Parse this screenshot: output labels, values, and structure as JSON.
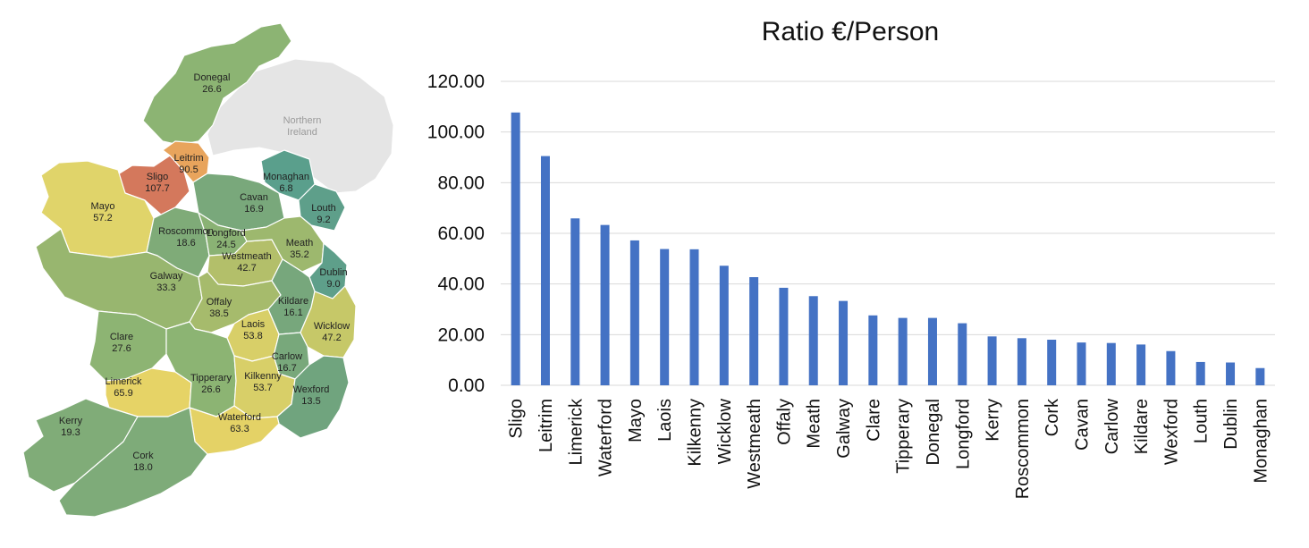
{
  "map": {
    "northern_ireland_label": [
      "Northern",
      "Ireland"
    ],
    "counties": [
      {
        "name": "Donegal",
        "value": "26.6",
        "color": "#8cb473"
      },
      {
        "name": "Leitrim",
        "value": "90.5",
        "color": "#e8a45c"
      },
      {
        "name": "Sligo",
        "value": "107.7",
        "color": "#d4785c"
      },
      {
        "name": "Monaghan",
        "value": "6.8",
        "color": "#5a9f8c"
      },
      {
        "name": "Mayo",
        "value": "57.2",
        "color": "#e0d46a"
      },
      {
        "name": "Cavan",
        "value": "16.9",
        "color": "#79a87b"
      },
      {
        "name": "Louth",
        "value": "9.2",
        "color": "#5e9f8a"
      },
      {
        "name": "Roscommon",
        "value": "18.6",
        "color": "#7fab78"
      },
      {
        "name": "Longford",
        "value": "24.5",
        "color": "#8ab274"
      },
      {
        "name": "Meath",
        "value": "35.2",
        "color": "#9db86e"
      },
      {
        "name": "Westmeath",
        "value": "42.7",
        "color": "#b3bf6a"
      },
      {
        "name": "Dublin",
        "value": "9.0",
        "color": "#5e9f8a"
      },
      {
        "name": "Galway",
        "value": "33.3",
        "color": "#98b66f"
      },
      {
        "name": "Offaly",
        "value": "38.5",
        "color": "#a6bb6c"
      },
      {
        "name": "Kildare",
        "value": "16.1",
        "color": "#77a77c"
      },
      {
        "name": "Laois",
        "value": "53.8",
        "color": "#d8cf68"
      },
      {
        "name": "Wicklow",
        "value": "47.2",
        "color": "#c6c868"
      },
      {
        "name": "Clare",
        "value": "27.6",
        "color": "#8db473"
      },
      {
        "name": "Carlow",
        "value": "16.7",
        "color": "#78a87b"
      },
      {
        "name": "Limerick",
        "value": "65.9",
        "color": "#e6d366"
      },
      {
        "name": "Tipperary",
        "value": "26.6",
        "color": "#8cb473"
      },
      {
        "name": "Kilkenny",
        "value": "53.7",
        "color": "#d8cf68"
      },
      {
        "name": "Wexford",
        "value": "13.5",
        "color": "#70a47e"
      },
      {
        "name": "Waterford",
        "value": "63.3",
        "color": "#e4d266"
      },
      {
        "name": "Kerry",
        "value": "19.3",
        "color": "#80ac78"
      },
      {
        "name": "Cork",
        "value": "18.0",
        "color": "#7eab79"
      }
    ]
  },
  "chart_data": {
    "type": "bar",
    "title": "Ratio €/Person",
    "categories": [
      "Sligo",
      "Leitrim",
      "Limerick",
      "Waterford",
      "Mayo",
      "Laois",
      "Kilkenny",
      "Wicklow",
      "Westmeath",
      "Offaly",
      "Meath",
      "Galway",
      "Clare",
      "Tipperary",
      "Donegal",
      "Longford",
      "Kerry",
      "Roscommon",
      "Cork",
      "Cavan",
      "Carlow",
      "Kildare",
      "Wexford",
      "Louth",
      "Dublin",
      "Monaghan"
    ],
    "values": [
      107.7,
      90.5,
      65.9,
      63.3,
      57.2,
      53.8,
      53.7,
      47.2,
      42.7,
      38.5,
      35.2,
      33.3,
      27.6,
      26.6,
      26.6,
      24.5,
      19.3,
      18.6,
      18.0,
      16.9,
      16.7,
      16.1,
      13.5,
      9.2,
      9.0,
      6.8
    ],
    "ylim": [
      0,
      120
    ],
    "yticks": [
      "0.00",
      "20.00",
      "40.00",
      "60.00",
      "80.00",
      "100.00",
      "120.00"
    ],
    "bar_color": "#4472c4",
    "grid": true,
    "legend": "none"
  }
}
